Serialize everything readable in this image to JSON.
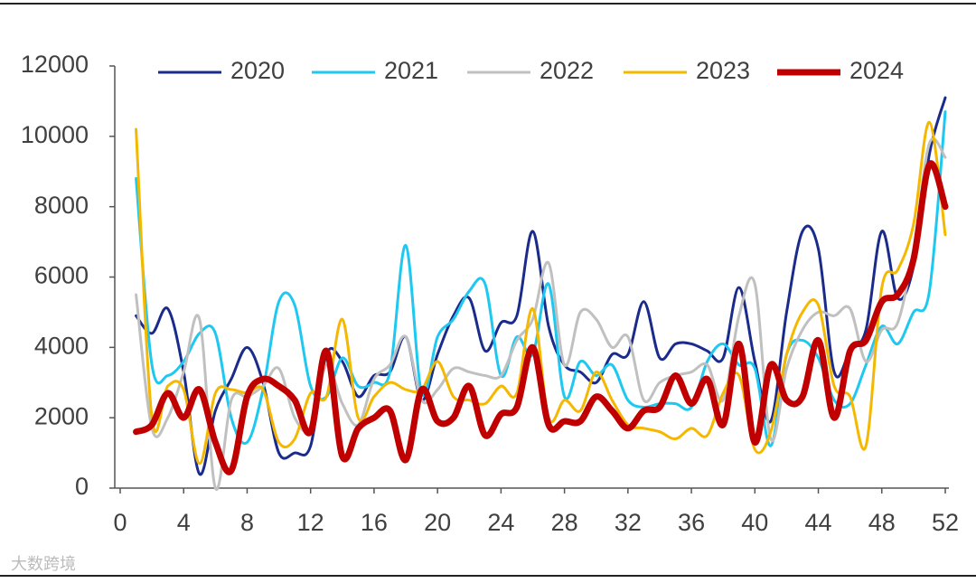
{
  "chart_data": {
    "type": "line",
    "x": [
      1,
      2,
      3,
      4,
      5,
      6,
      7,
      8,
      9,
      10,
      11,
      12,
      13,
      14,
      15,
      16,
      17,
      18,
      19,
      20,
      21,
      22,
      23,
      24,
      25,
      26,
      27,
      28,
      29,
      30,
      31,
      32,
      33,
      34,
      35,
      36,
      37,
      38,
      39,
      40,
      41,
      42,
      43,
      44,
      45,
      46,
      47,
      48,
      49,
      50,
      51,
      52
    ],
    "series": [
      {
        "name": "2020",
        "color": "#1a2b8c",
        "width": 3,
        "values": [
          4900,
          4400,
          5100,
          3300,
          400,
          2200,
          3100,
          4000,
          3000,
          1000,
          1000,
          1200,
          3800,
          3600,
          2600,
          3200,
          3300,
          4300,
          2500,
          3800,
          4900,
          5400,
          3900,
          4700,
          4900,
          7300,
          4600,
          3500,
          3300,
          3000,
          3800,
          3800,
          5300,
          3700,
          4100,
          4100,
          3900,
          3700,
          5700,
          3600,
          1900,
          5000,
          7300,
          6800,
          3300,
          3900,
          4500,
          7300,
          5400,
          6300,
          9500,
          11100
        ]
      },
      {
        "name": "2021",
        "color": "#1ec8f0",
        "width": 3,
        "values": [
          8800,
          3500,
          3200,
          3600,
          4400,
          4400,
          2000,
          1300,
          2800,
          5300,
          5200,
          2900,
          2600,
          3700,
          2900,
          3000,
          3300,
          6900,
          2700,
          4300,
          4800,
          5600,
          5800,
          3200,
          4300,
          3800,
          5800,
          2600,
          3600,
          3200,
          3500,
          2500,
          2300,
          2400,
          2400,
          2300,
          3600,
          4100,
          3500,
          3400,
          1200,
          3800,
          4200,
          3700,
          2500,
          2400,
          3500,
          4600,
          4100,
          5000,
          5600,
          10700
        ]
      },
      {
        "name": "2022",
        "color": "#c0c0c0",
        "width": 3,
        "values": [
          5500,
          1700,
          2000,
          3300,
          4800,
          0,
          2500,
          2600,
          2900,
          3400,
          2000,
          1700,
          3500,
          2400,
          1800,
          3100,
          3500,
          4300,
          2500,
          2800,
          3400,
          3300,
          3200,
          3200,
          4200,
          4800,
          6400,
          3500,
          5000,
          4800,
          4000,
          4300,
          2500,
          3000,
          3200,
          3300,
          3500,
          2500,
          4900,
          5800,
          1400,
          3400,
          4500,
          5000,
          4900,
          5100,
          3600,
          4500,
          4700,
          6800,
          9800,
          9400
        ]
      },
      {
        "name": "2023",
        "color": "#f5b800",
        "width": 3,
        "values": [
          10200,
          2000,
          2900,
          2800,
          700,
          2700,
          2800,
          2700,
          2800,
          1300,
          1400,
          2700,
          2600,
          4800,
          2000,
          2600,
          3000,
          2800,
          2800,
          3600,
          2600,
          2500,
          2400,
          2900,
          2700,
          5100,
          2000,
          2500,
          2200,
          3300,
          2500,
          1800,
          1700,
          1600,
          1400,
          1700,
          1500,
          2700,
          3200,
          1100,
          1600,
          3800,
          5000,
          5200,
          2900,
          2600,
          1200,
          5700,
          6200,
          7500,
          10400,
          7200
        ]
      },
      {
        "name": "2024",
        "color": "#c00000",
        "width": 7,
        "values": [
          1600,
          1800,
          2700,
          2000,
          2800,
          1300,
          500,
          2600,
          3100,
          2900,
          2500,
          1600,
          3900,
          900,
          1700,
          2000,
          2200,
          800,
          2800,
          1900,
          2000,
          2900,
          1500,
          2100,
          2300,
          4000,
          1800,
          1900,
          1900,
          2600,
          2200,
          1700,
          2200,
          2300,
          3200,
          2400,
          3100,
          1800,
          4100,
          1300,
          3500,
          2500,
          2600,
          4200,
          2000,
          3900,
          4200,
          5300,
          5500,
          6500,
          9200,
          8000
        ]
      }
    ],
    "xlim": [
      0,
      52
    ],
    "xticks": [
      0,
      4,
      8,
      12,
      16,
      20,
      24,
      28,
      32,
      36,
      40,
      44,
      48,
      52
    ],
    "ylim": [
      0,
      12000
    ],
    "yticks": [
      0,
      2000,
      4000,
      6000,
      8000,
      10000,
      12000
    ],
    "legend": "top",
    "watermark": "大数跨境"
  }
}
